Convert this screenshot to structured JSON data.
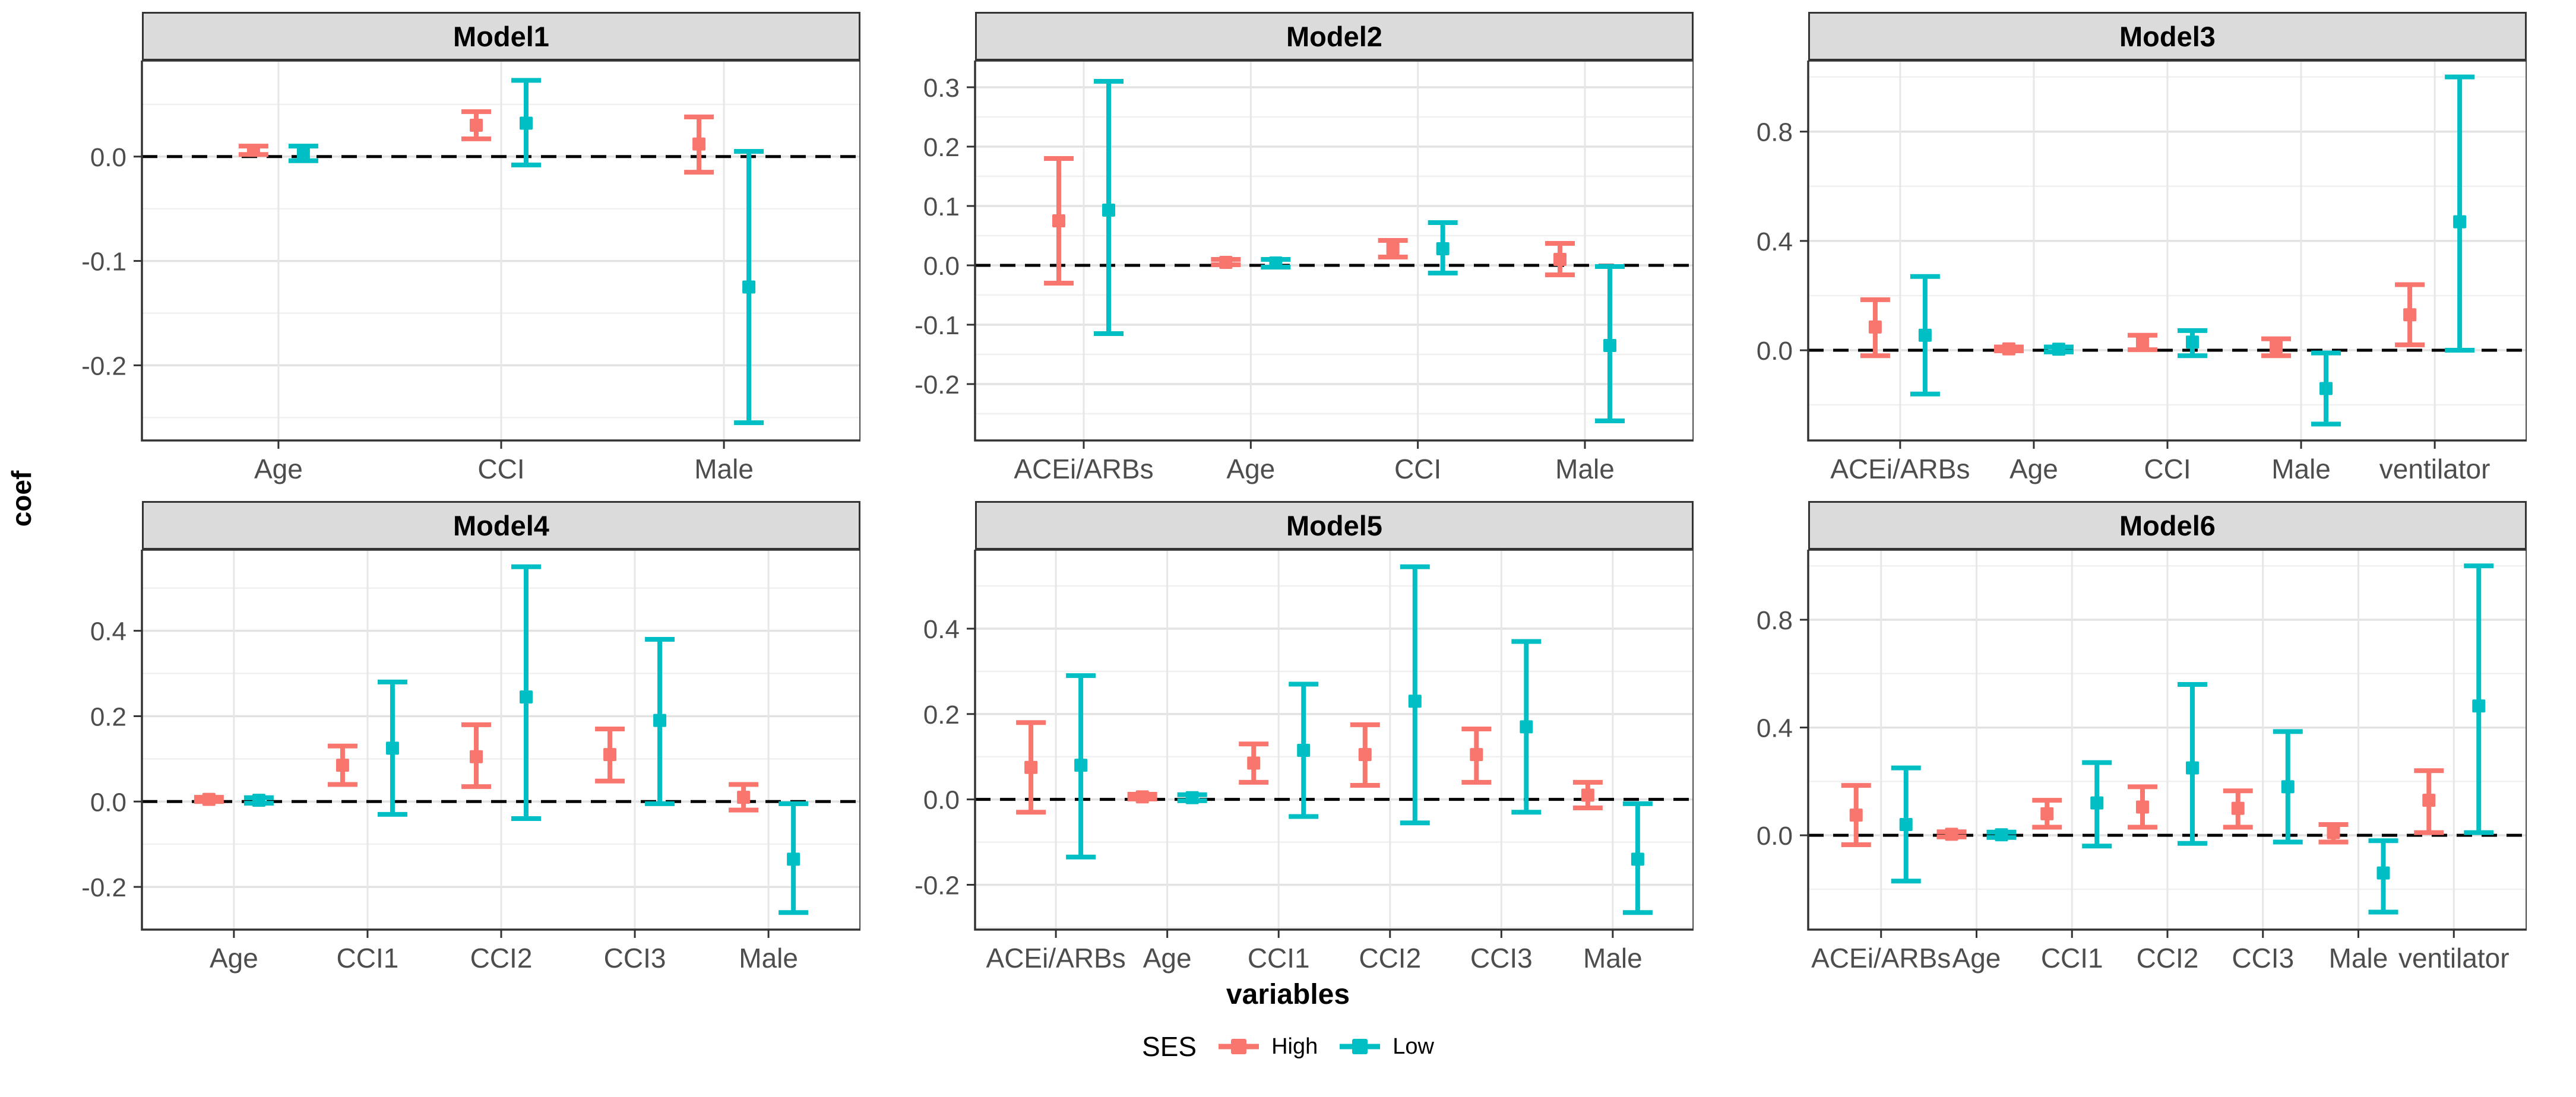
{
  "figure": {
    "y_axis_title": "coef",
    "x_axis_title": "variables",
    "legend": {
      "title": "SES",
      "items": [
        {
          "label": "High",
          "color": "#F8766D"
        },
        {
          "label": "Low",
          "color": "#00BFC4"
        }
      ]
    },
    "colors": {
      "high": "#F8766D",
      "low": "#00BFC4",
      "strip_bg": "#DBDBDB",
      "panel_border": "#333333",
      "grid_major": "#E2E2E2",
      "grid_minor": "#F0F0F0",
      "grid_vertical": "#E7E7E7",
      "tick_label": "#4D4D4D",
      "ref_line": "#000000"
    }
  },
  "chart_data": [
    {
      "type": "pointrange",
      "title": "Model1",
      "ylim": [
        -0.272,
        0.092
      ],
      "yticks": [
        0.0,
        -0.1,
        -0.2
      ],
      "ref_line": 0,
      "categories": [
        "Age",
        "CCI",
        "Male"
      ],
      "series": [
        {
          "name": "High",
          "points": [
            {
              "y": 0.006,
              "lo": 0.002,
              "hi": 0.01
            },
            {
              "y": 0.03,
              "lo": 0.017,
              "hi": 0.043
            },
            {
              "y": 0.012,
              "lo": -0.015,
              "hi": 0.038
            }
          ]
        },
        {
          "name": "Low",
          "points": [
            {
              "y": 0.004,
              "lo": -0.004,
              "hi": 0.01
            },
            {
              "y": 0.032,
              "lo": -0.008,
              "hi": 0.073
            },
            {
              "y": -0.125,
              "lo": -0.255,
              "hi": 0.005
            }
          ]
        }
      ]
    },
    {
      "type": "pointrange",
      "title": "Model2",
      "ylim": [
        -0.295,
        0.345
      ],
      "yticks": [
        0.3,
        0.2,
        0.1,
        0.0,
        -0.1,
        -0.2
      ],
      "ref_line": 0,
      "categories": [
        "ACEi/ARBs",
        "Age",
        "CCI",
        "Male"
      ],
      "series": [
        {
          "name": "High",
          "points": [
            {
              "y": 0.075,
              "lo": -0.03,
              "hi": 0.18
            },
            {
              "y": 0.005,
              "lo": 0.001,
              "hi": 0.01
            },
            {
              "y": 0.028,
              "lo": 0.014,
              "hi": 0.042
            },
            {
              "y": 0.01,
              "lo": -0.016,
              "hi": 0.037
            }
          ]
        },
        {
          "name": "Low",
          "points": [
            {
              "y": 0.093,
              "lo": -0.115,
              "hi": 0.31
            },
            {
              "y": 0.004,
              "lo": -0.003,
              "hi": 0.01
            },
            {
              "y": 0.028,
              "lo": -0.013,
              "hi": 0.072
            },
            {
              "y": -0.135,
              "lo": -0.262,
              "hi": -0.002
            }
          ]
        }
      ]
    },
    {
      "type": "pointrange",
      "title": "Model3",
      "ylim": [
        -0.33,
        1.06
      ],
      "yticks": [
        0.0,
        0.4,
        0.8
      ],
      "ref_line": 0,
      "categories": [
        "ACEi/ARBs",
        "Age",
        "CCI",
        "Male",
        "ventilator"
      ],
      "series": [
        {
          "name": "High",
          "points": [
            {
              "y": 0.085,
              "lo": -0.02,
              "hi": 0.185
            },
            {
              "y": 0.005,
              "lo": -0.002,
              "hi": 0.012
            },
            {
              "y": 0.03,
              "lo": 0.002,
              "hi": 0.055
            },
            {
              "y": 0.012,
              "lo": -0.02,
              "hi": 0.042
            },
            {
              "y": 0.13,
              "lo": 0.02,
              "hi": 0.24
            }
          ]
        },
        {
          "name": "Low",
          "points": [
            {
              "y": 0.055,
              "lo": -0.16,
              "hi": 0.27
            },
            {
              "y": 0.004,
              "lo": -0.006,
              "hi": 0.012
            },
            {
              "y": 0.03,
              "lo": -0.02,
              "hi": 0.072
            },
            {
              "y": -0.14,
              "lo": -0.27,
              "hi": -0.01
            },
            {
              "y": 0.47,
              "lo": 0.0,
              "hi": 1.0
            }
          ]
        }
      ]
    },
    {
      "type": "pointrange",
      "title": "Model4",
      "ylim": [
        -0.3,
        0.59
      ],
      "yticks": [
        0.4,
        0.2,
        0.0,
        -0.2
      ],
      "ref_line": 0,
      "categories": [
        "Age",
        "CCI1",
        "CCI2",
        "CCI3",
        "Male"
      ],
      "series": [
        {
          "name": "High",
          "points": [
            {
              "y": 0.005,
              "lo": 0.0,
              "hi": 0.01
            },
            {
              "y": 0.085,
              "lo": 0.04,
              "hi": 0.13
            },
            {
              "y": 0.105,
              "lo": 0.035,
              "hi": 0.18
            },
            {
              "y": 0.11,
              "lo": 0.048,
              "hi": 0.17
            },
            {
              "y": 0.01,
              "lo": -0.02,
              "hi": 0.04
            }
          ]
        },
        {
          "name": "Low",
          "points": [
            {
              "y": 0.003,
              "lo": -0.004,
              "hi": 0.009
            },
            {
              "y": 0.125,
              "lo": -0.03,
              "hi": 0.28
            },
            {
              "y": 0.245,
              "lo": -0.04,
              "hi": 0.55
            },
            {
              "y": 0.19,
              "lo": -0.005,
              "hi": 0.38
            },
            {
              "y": -0.135,
              "lo": -0.26,
              "hi": -0.005
            }
          ]
        }
      ]
    },
    {
      "type": "pointrange",
      "title": "Model5",
      "ylim": [
        -0.305,
        0.585
      ],
      "yticks": [
        0.4,
        0.2,
        0.0,
        -0.2
      ],
      "ref_line": 0,
      "categories": [
        "ACEi/ARBs",
        "Age",
        "CCI1",
        "CCI2",
        "CCI3",
        "Male"
      ],
      "series": [
        {
          "name": "High",
          "points": [
            {
              "y": 0.075,
              "lo": -0.03,
              "hi": 0.18
            },
            {
              "y": 0.006,
              "lo": 0.001,
              "hi": 0.012
            },
            {
              "y": 0.085,
              "lo": 0.04,
              "hi": 0.13
            },
            {
              "y": 0.105,
              "lo": 0.033,
              "hi": 0.175
            },
            {
              "y": 0.105,
              "lo": 0.04,
              "hi": 0.165
            },
            {
              "y": 0.01,
              "lo": -0.02,
              "hi": 0.04
            }
          ]
        },
        {
          "name": "Low",
          "points": [
            {
              "y": 0.08,
              "lo": -0.135,
              "hi": 0.29
            },
            {
              "y": 0.004,
              "lo": -0.003,
              "hi": 0.011
            },
            {
              "y": 0.115,
              "lo": -0.04,
              "hi": 0.27
            },
            {
              "y": 0.23,
              "lo": -0.055,
              "hi": 0.545
            },
            {
              "y": 0.17,
              "lo": -0.03,
              "hi": 0.37
            },
            {
              "y": -0.14,
              "lo": -0.265,
              "hi": -0.01
            }
          ]
        }
      ]
    },
    {
      "type": "pointrange",
      "title": "Model6",
      "ylim": [
        -0.35,
        1.06
      ],
      "yticks": [
        0.0,
        0.4,
        0.8
      ],
      "ref_line": 0,
      "categories": [
        "ACEi/ARBs",
        "Age",
        "CCI1",
        "CCI2",
        "CCI3",
        "Male",
        "ventilator"
      ],
      "series": [
        {
          "name": "High",
          "points": [
            {
              "y": 0.075,
              "lo": -0.035,
              "hi": 0.185
            },
            {
              "y": 0.004,
              "lo": -0.006,
              "hi": 0.013
            },
            {
              "y": 0.08,
              "lo": 0.03,
              "hi": 0.13
            },
            {
              "y": 0.105,
              "lo": 0.03,
              "hi": 0.18
            },
            {
              "y": 0.1,
              "lo": 0.03,
              "hi": 0.165
            },
            {
              "y": 0.01,
              "lo": -0.025,
              "hi": 0.04
            },
            {
              "y": 0.13,
              "lo": 0.01,
              "hi": 0.24
            }
          ]
        },
        {
          "name": "Low",
          "points": [
            {
              "y": 0.04,
              "lo": -0.17,
              "hi": 0.25
            },
            {
              "y": 0.002,
              "lo": -0.008,
              "hi": 0.012
            },
            {
              "y": 0.12,
              "lo": -0.04,
              "hi": 0.27
            },
            {
              "y": 0.25,
              "lo": -0.03,
              "hi": 0.56
            },
            {
              "y": 0.18,
              "lo": -0.025,
              "hi": 0.385
            },
            {
              "y": -0.14,
              "lo": -0.285,
              "hi": -0.02
            },
            {
              "y": 0.48,
              "lo": 0.01,
              "hi": 1.0
            }
          ]
        }
      ]
    }
  ]
}
